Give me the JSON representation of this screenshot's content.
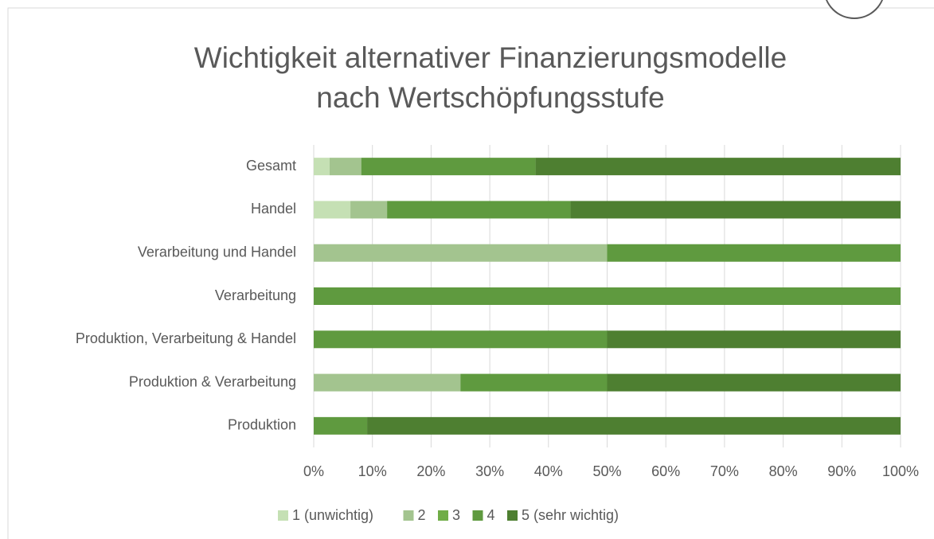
{
  "chart_data": {
    "type": "stacked_barh",
    "title": [
      "Wichtigkeit alternativer Finanzierungsmodelle",
      "nach Wertschöpfungsstufe"
    ],
    "categories": [
      "Gesamt",
      "Handel",
      "Verarbeitung und Handel",
      "Verarbeitung",
      "Produktion, Verarbeitung & Handel",
      "Produktion & Verarbeitung",
      "Produktion"
    ],
    "series": [
      {
        "name": "1 (unwichtig)",
        "color": "#c5e0b4",
        "values": [
          2.7,
          6.25,
          0,
          0,
          0,
          0,
          0
        ]
      },
      {
        "name": "2",
        "color": "#a3c48f",
        "values": [
          5.4,
          6.25,
          50,
          0,
          0,
          25,
          0
        ]
      },
      {
        "name": "3",
        "color": "#70ad47",
        "values": [
          0,
          0,
          0,
          0,
          0,
          0,
          0
        ]
      },
      {
        "name": "4",
        "color": "#5f9a3f",
        "values": [
          29.7,
          31.25,
          50,
          100,
          50,
          25,
          9.1
        ]
      },
      {
        "name": "5 (sehr wichtig)",
        "color": "#4e7f31",
        "values": [
          62.2,
          56.25,
          0,
          0,
          50,
          50,
          90.9
        ]
      }
    ],
    "xlim": [
      0,
      100
    ],
    "xticks": [
      {
        "value": 0,
        "label": "0%"
      },
      {
        "value": 10,
        "label": "10%"
      },
      {
        "value": 20,
        "label": "20%"
      },
      {
        "value": 30,
        "label": "30%"
      },
      {
        "value": 40,
        "label": "40%"
      },
      {
        "value": 50,
        "label": "50%"
      },
      {
        "value": 60,
        "label": "60%"
      },
      {
        "value": 70,
        "label": "70%"
      },
      {
        "value": 80,
        "label": "80%"
      },
      {
        "value": 90,
        "label": "90%"
      },
      {
        "value": 100,
        "label": "100%"
      }
    ],
    "grid": true,
    "legend": "bottom"
  }
}
